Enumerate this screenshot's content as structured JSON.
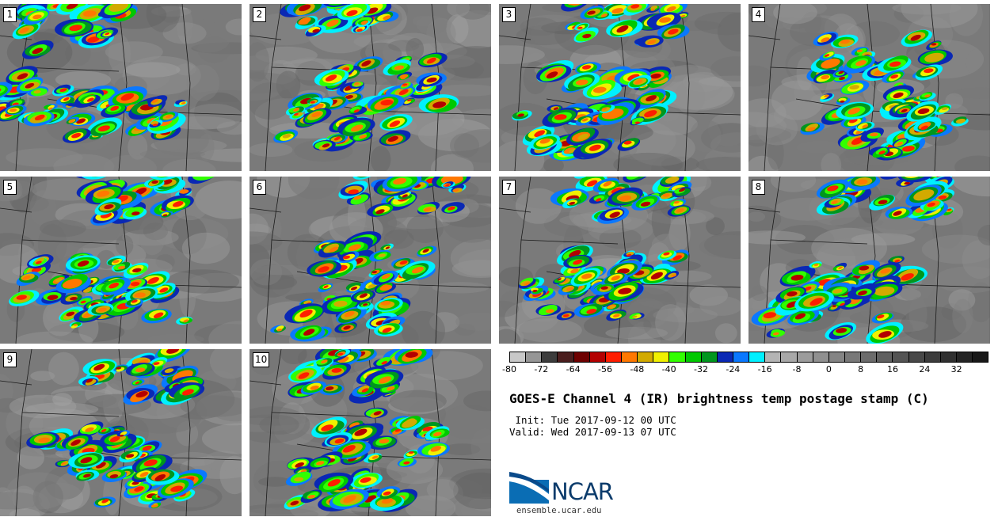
{
  "panels": [
    {
      "number": "1"
    },
    {
      "number": "2"
    },
    {
      "number": "3"
    },
    {
      "number": "4"
    },
    {
      "number": "5"
    },
    {
      "number": "6"
    },
    {
      "number": "7"
    },
    {
      "number": "8"
    },
    {
      "number": "9"
    },
    {
      "number": "10"
    }
  ],
  "colorbar": {
    "colors": [
      "#c8c8c8",
      "#969696",
      "#3c3c3c",
      "#4a1e1e",
      "#6e0000",
      "#b40000",
      "#ff1e00",
      "#ff7800",
      "#d2aa00",
      "#f0f000",
      "#32ff00",
      "#00c800",
      "#00961e",
      "#0a28b4",
      "#0a78ff",
      "#00f0ff",
      "#b4b4b4",
      "#a8a8a8",
      "#9c9c9c",
      "#909090",
      "#848484",
      "#787878",
      "#6c6c6c",
      "#606060",
      "#545454",
      "#484848",
      "#3c3c3c",
      "#303030",
      "#242424",
      "#181818"
    ],
    "labels": [
      "-80",
      "-72",
      "-64",
      "-56",
      "-48",
      "-40",
      "-32",
      "-24",
      "-16",
      "-8",
      "0",
      "8",
      "16",
      "24",
      "32"
    ]
  },
  "title": "GOES-E Channel 4 (IR) brightness temp postage stamp (C)",
  "init_line": " Init: Tue 2017-09-12 00 UTC",
  "valid_line": "Valid: Wed 2017-09-13 07 UTC",
  "logo": {
    "text": "NCAR",
    "url": "ensemble.ucar.edu"
  }
}
